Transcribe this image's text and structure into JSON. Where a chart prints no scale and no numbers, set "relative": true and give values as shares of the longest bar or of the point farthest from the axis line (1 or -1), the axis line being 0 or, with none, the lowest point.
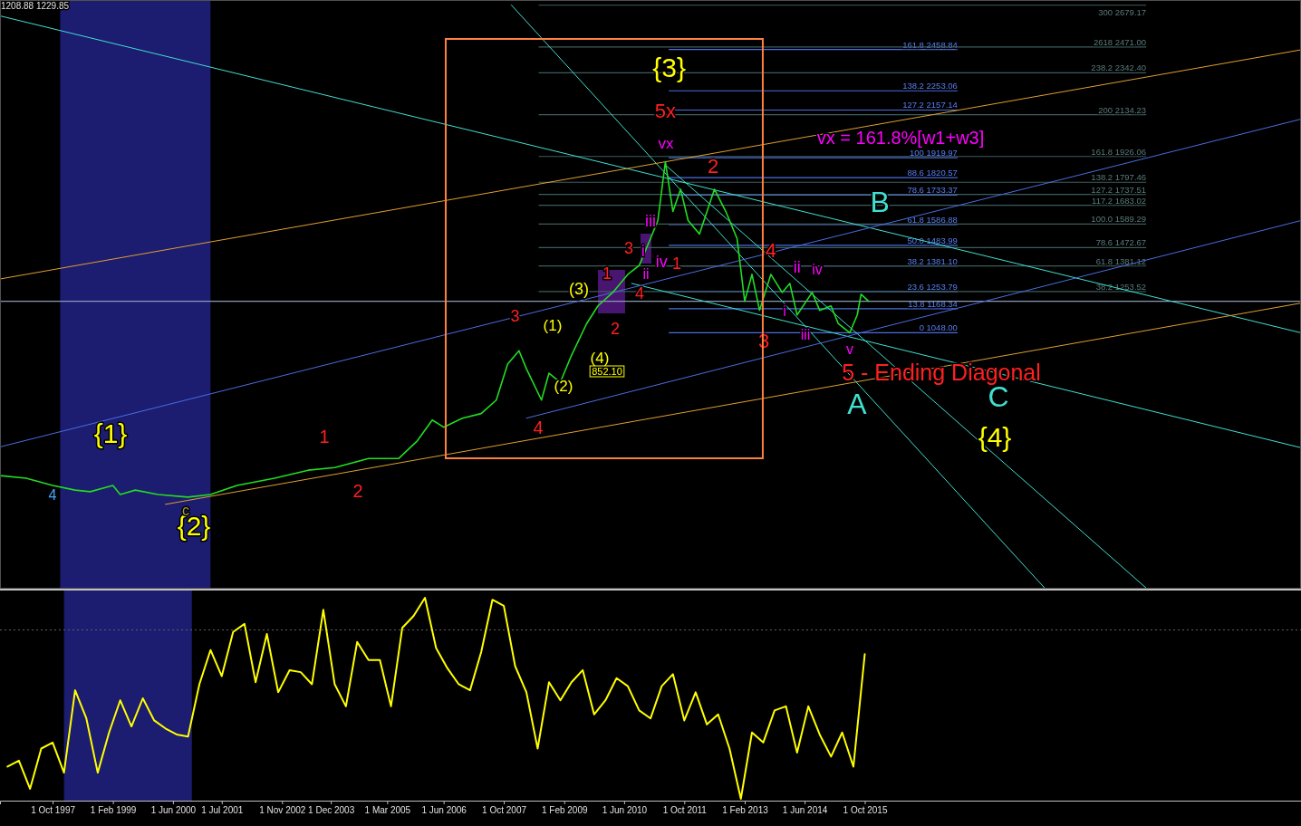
{
  "chart_data": [
    {
      "type": "line",
      "xlim": [
        "1996-08",
        "2025-06"
      ],
      "ylim": [
        -226,
        2705
      ],
      "marker": "none",
      "x": [
        "1996-08",
        "1997-03",
        "1997-10",
        "1998-04",
        "1998-08",
        "1999-02",
        "1999-04",
        "1999-08",
        "2000-02",
        "2000-10",
        "2001-04",
        "2001-11",
        "2002-09",
        "2003-06",
        "2004-01",
        "2004-10",
        "2005-06",
        "2005-11",
        "2006-03",
        "2006-06",
        "2006-11",
        "2007-04",
        "2007-08",
        "2007-11",
        "2008-02",
        "2008-04",
        "2008-08",
        "2008-10",
        "2009-01",
        "2009-04",
        "2009-08",
        "2009-11",
        "2010-03",
        "2010-07",
        "2010-10",
        "2011-01",
        "2011-03",
        "2011-05",
        "2011-07",
        "2011-09",
        "2011-11",
        "2012-02",
        "2012-06",
        "2012-09",
        "2012-12",
        "2013-02",
        "2013-04",
        "2013-06",
        "2013-09",
        "2013-12",
        "2014-02",
        "2014-04",
        "2014-08",
        "2014-10",
        "2015-01",
        "2015-03",
        "2015-06",
        "2015-08",
        "2015-09",
        "2015-11"
      ],
      "series": [
        {
          "color": "#22dd22",
          "values": [
            337,
            324,
            288,
            265,
            257,
            288,
            243,
            265,
            243,
            230,
            243,
            288,
            324,
            364,
            377,
            422,
            422,
            511,
            614,
            578,
            623,
            646,
            713,
            892,
            959,
            869,
            713,
            847,
            802,
            936,
            1093,
            1182,
            1249,
            1339,
            1383,
            1518,
            1607,
            1900,
            1652,
            1763,
            1607,
            1540,
            1763,
            1652,
            1518,
            1205,
            1339,
            1160,
            1339,
            1249,
            1294,
            1137,
            1249,
            1160,
            1182,
            1093,
            1048,
            1137,
            1240,
            1205
          ]
        },
        {
          "type": "line",
          "color": "#40e0d0",
          "x": [
            "1996-08",
            "2025-06"
          ],
          "values": [
            2626,
            1048
          ]
        },
        {
          "type": "line",
          "color": "#40e0d0",
          "x": [
            "2010-08",
            "2025-06"
          ],
          "values": [
            1294,
            476
          ]
        },
        {
          "type": "line",
          "color": "#40e0d0",
          "x": [
            "2007-12",
            "2019-10"
          ],
          "values": [
            2680,
            -226
          ]
        },
        {
          "type": "line",
          "color": "#40e0d0",
          "x": [
            "2011-05",
            "2022-01"
          ],
          "values": [
            1884,
            -226
          ]
        },
        {
          "type": "line",
          "color": "#e0a030",
          "x": [
            "1996-08",
            "2025-06"
          ],
          "values": [
            1316,
            2457
          ]
        },
        {
          "type": "line",
          "color": "#e0a030",
          "x": [
            "2000-04",
            "2025-06"
          ],
          "values": [
            194,
            1196
          ]
        },
        {
          "type": "line",
          "color": "#4a6ee0",
          "x": [
            "1996-08",
            "2025-06"
          ],
          "values": [
            480,
            2112
          ]
        },
        {
          "type": "line",
          "color": "#4a6ee0",
          "x": [
            "2008-04",
            "2025-06"
          ],
          "values": [
            623,
            1607
          ]
        }
      ],
      "bands": [
        {
          "axis": "x",
          "from": "1997-12",
          "to": "2001-04",
          "color": "#1c1c70"
        }
      ],
      "ref_lines": [
        {
          "axis": "y",
          "value": 2458.84,
          "label": "161.8 2458.84",
          "color": "#4a6ee0"
        },
        {
          "axis": "y",
          "value": 2253.06,
          "label": "138.2 2253.06",
          "color": "#4a6ee0"
        },
        {
          "axis": "y",
          "value": 2157.14,
          "label": "127.2 2157.14",
          "color": "#4a6ee0"
        },
        {
          "axis": "y",
          "value": 1919.97,
          "label": "100 1919.97",
          "color": "#4a6ee0"
        },
        {
          "axis": "y",
          "value": 1820.57,
          "label": "88.6 1820.57",
          "color": "#4a6ee0"
        },
        {
          "axis": "y",
          "value": 1733.37,
          "label": "78.6 1733.37",
          "color": "#4a6ee0"
        },
        {
          "axis": "y",
          "value": 1586.88,
          "label": "61.8 1586.88",
          "color": "#4a6ee0"
        },
        {
          "axis": "y",
          "value": 1483.99,
          "label": "50.0 1483.99",
          "color": "#4a6ee0"
        },
        {
          "axis": "y",
          "value": 1381.1,
          "label": "38.2 1381.10",
          "color": "#4a6ee0"
        },
        {
          "axis": "y",
          "value": 1253.79,
          "label": "23.6 1253.79",
          "color": "#4a6ee0"
        },
        {
          "axis": "y",
          "value": 1168.34,
          "label": "13.8 1168.34",
          "color": "#4a6ee0"
        },
        {
          "axis": "y",
          "value": 1048.0,
          "label": "0 1048.00",
          "color": "#4a6ee0"
        },
        {
          "axis": "y",
          "value": 2679.17,
          "label": "300 2679.17",
          "color": "#3e5c5c"
        },
        {
          "axis": "y",
          "value": 2471.0,
          "label": "2618 2471.00",
          "color": "#3e5c5c"
        },
        {
          "axis": "y",
          "value": 2342.4,
          "label": "238.2 2342.40",
          "color": "#3e5c5c"
        },
        {
          "axis": "y",
          "value": 2134.23,
          "label": "200 2134.23",
          "color": "#3e5c5c"
        },
        {
          "axis": "y",
          "value": 1926.06,
          "label": "161.8 1926.06",
          "color": "#3e5c5c"
        },
        {
          "axis": "y",
          "value": 1797.46,
          "label": "138.2 1797.46",
          "color": "#3e5c5c"
        },
        {
          "axis": "y",
          "value": 1737.51,
          "label": "127.2 1737.51",
          "color": "#3e5c5c"
        },
        {
          "axis": "y",
          "value": 1683.02,
          "label": "117.2 1683.02",
          "color": "#3e5c5c"
        },
        {
          "axis": "y",
          "value": 1589.29,
          "label": "100.0 1589.29",
          "color": "#3e5c5c"
        },
        {
          "axis": "y",
          "value": 1472.67,
          "label": "78.6 1472.67",
          "color": "#3e5c5c"
        },
        {
          "axis": "y",
          "value": 1381.12,
          "label": "61.8 1381.12",
          "color": "#3e5c5c"
        },
        {
          "axis": "y",
          "value": 1253.52,
          "label": "38.2 1253.52",
          "color": "#3e5c5c"
        },
        {
          "axis": "y",
          "value": 1205,
          "color": "#8a9ab8"
        }
      ],
      "annotations": [
        "1208.88 1229.85",
        "{1}",
        "{2}",
        {
          "text": "{3}",
          "x": "2011-06",
          "y": 2358
        },
        "{4}",
        "4",
        "c",
        "1",
        "2",
        {
          "text": "3",
          "x": "2008-01",
          "y": 1124
        },
        "4",
        "(1)",
        "(2)",
        {
          "text": "(3)",
          "x": "2009-06",
          "y": 1263
        },
        "(4)",
        "852.10",
        "1",
        "2",
        "3",
        "4",
        {
          "text": "i",
          "x": "2010-11",
          "y": 1450
        },
        "ii",
        {
          "text": "iii",
          "x": "2011-01",
          "y": 1598
        },
        {
          "text": "iv",
          "x": "2011-04",
          "y": 1397
        },
        {
          "text": "1",
          "x": "2011-08",
          "y": 1388
        },
        "vx",
        {
          "text": "5x",
          "x": "2011-05",
          "y": 2144
        },
        "2",
        {
          "text": "4",
          "x": "2013-09",
          "y": 1450
        },
        "3",
        "i",
        {
          "text": "ii",
          "x": "2014-04",
          "y": 1370
        },
        "iii",
        "iv",
        "v",
        "vx = 161.8%[w1+w3]",
        "A",
        {
          "text": "B",
          "x": "2016-02",
          "y": 1687
        },
        "C",
        "5 - Ending Diagonal"
      ]
    },
    {
      "type": "line",
      "relative": true,
      "xlim": [
        "1996-08",
        "2025-06"
      ],
      "marker": "none",
      "xticks": [
        {
          "value": "1997-10-01",
          "label": "1 Oct 1997"
        },
        {
          "value": "1999-02-01",
          "label": "1 Feb 1999"
        },
        {
          "value": "2000-06-01",
          "label": "1 Jun 2000"
        },
        {
          "value": "2001-07-01",
          "label": "1 Jul 2001"
        },
        {
          "value": "2002-11-01",
          "label": "1 Nov 2002"
        },
        {
          "value": "2003-12-01",
          "label": "1 Dec 2003"
        },
        {
          "value": "2005-03-01",
          "label": "1 Mar 2005"
        },
        {
          "value": "2006-06-01",
          "label": "1 Jun 2006"
        },
        {
          "value": "2007-10-01",
          "label": "1 Oct 2007"
        },
        {
          "value": "2009-02-01",
          "label": "1 Feb 2009"
        },
        {
          "value": "2010-06-01",
          "label": "1 Jun 2010"
        },
        {
          "value": "2011-10-01",
          "label": "1 Oct 2011"
        },
        {
          "value": "2013-02-01",
          "label": "1 Feb 2013"
        },
        {
          "value": "2014-06-01",
          "label": "1 Jun 2014"
        },
        {
          "value": "2015-10-01",
          "label": "1 Oct 2015"
        }
      ],
      "x": [
        "1996-10",
        "1997-01",
        "1997-04",
        "1997-07",
        "1997-10",
        "1998-01",
        "1998-04",
        "1998-07",
        "1998-10",
        "1999-01",
        "1999-04",
        "1999-07",
        "1999-10",
        "2000-01",
        "2000-04",
        "2000-07",
        "2000-10",
        "2001-01",
        "2001-04",
        "2001-07",
        "2001-10",
        "2002-01",
        "2002-04",
        "2002-07",
        "2002-10",
        "2003-01",
        "2003-04",
        "2003-07",
        "2003-10",
        "2004-01",
        "2004-04",
        "2004-07",
        "2004-10",
        "2005-01",
        "2005-04",
        "2005-07",
        "2005-10",
        "2006-01",
        "2006-04",
        "2006-07",
        "2006-10",
        "2007-01",
        "2007-04",
        "2007-07",
        "2007-10",
        "2008-01",
        "2008-04",
        "2008-07",
        "2008-10",
        "2009-01",
        "2009-04",
        "2009-07",
        "2009-10",
        "2010-01",
        "2010-04",
        "2010-07",
        "2010-10",
        "2011-01",
        "2011-04",
        "2011-07",
        "2011-10",
        "2012-01",
        "2012-04",
        "2012-07",
        "2012-10",
        "2013-01",
        "2013-04",
        "2013-07",
        "2013-10",
        "2014-01",
        "2014-04",
        "2014-07",
        "2014-10",
        "2015-01",
        "2015-04",
        "2015-07",
        "2015-10"
      ],
      "series": [
        {
          "color": "#ffff00",
          "values": [
            0.16,
            0.19,
            0.05,
            0.25,
            0.28,
            0.13,
            0.54,
            0.4,
            0.13,
            0.33,
            0.49,
            0.36,
            0.5,
            0.39,
            0.35,
            0.32,
            0.31,
            0.57,
            0.74,
            0.61,
            0.83,
            0.87,
            0.58,
            0.82,
            0.53,
            0.64,
            0.63,
            0.57,
            0.94,
            0.57,
            0.46,
            0.78,
            0.69,
            0.69,
            0.46,
            0.85,
            0.91,
            1,
            0.75,
            0.65,
            0.57,
            0.54,
            0.73,
            0.99,
            0.96,
            0.66,
            0.53,
            0.25,
            0.58,
            0.49,
            0.58,
            0.64,
            0.42,
            0.49,
            0.6,
            0.56,
            0.44,
            0.4,
            0.56,
            0.62,
            0.39,
            0.53,
            0.37,
            0.42,
            0.25,
            0,
            0.33,
            0.28,
            0.44,
            0.46,
            0.23,
            0.46,
            0.32,
            0.21,
            0.33,
            0.16,
            0.72
          ]
        }
      ],
      "bands": [
        {
          "axis": "x",
          "from": "1998-01",
          "to": "2000-11",
          "color": "#1c1c70"
        }
      ],
      "ref_lines": [
        {
          "axis": "y",
          "value": 0.84,
          "line_style": "dotted",
          "color": "#606060"
        }
      ]
    }
  ]
}
